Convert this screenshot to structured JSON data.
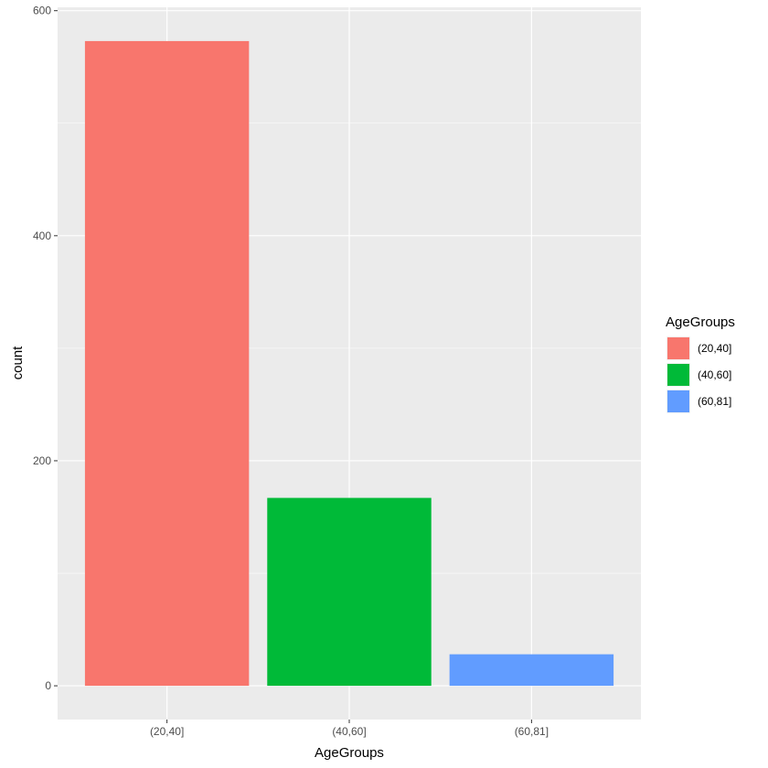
{
  "chart_data": {
    "type": "bar",
    "categories": [
      "(20,40]",
      "(40,60]",
      "(60,81]"
    ],
    "values": [
      573,
      167,
      28
    ],
    "xlabel": "AgeGroups",
    "ylabel": "count",
    "ylim": [
      -30,
      603
    ],
    "yticks": [
      0,
      200,
      400,
      600
    ],
    "yticks_minor": [
      100,
      300,
      500
    ],
    "grid": true,
    "legend": {
      "title": "AgeGroups",
      "position": "right",
      "entries": [
        "(20,40]",
        "(40,60]",
        "(60,81]"
      ]
    },
    "colors": [
      "#F8766D",
      "#00BA38",
      "#619CFF"
    ],
    "panel_background": "#EBEBEB",
    "grid_color": "#FFFFFF"
  }
}
